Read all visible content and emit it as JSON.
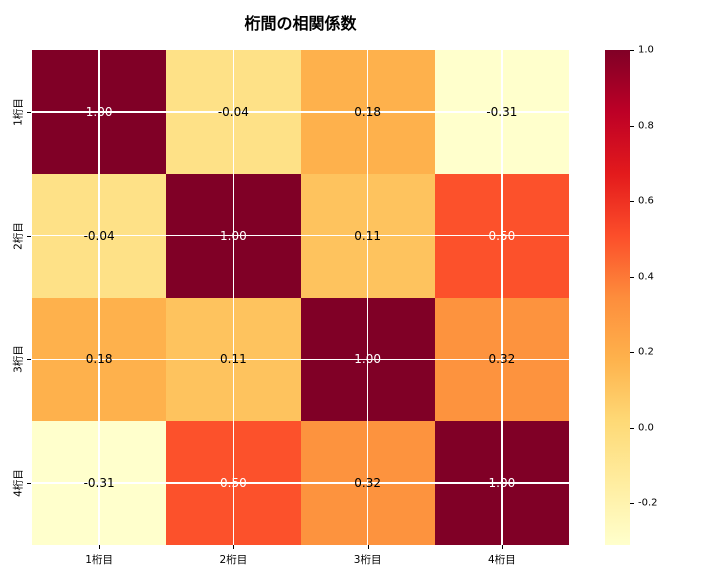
{
  "chart_data": {
    "type": "heatmap",
    "title": "桁間の相関係数",
    "categories": [
      "1桁目",
      "2桁目",
      "3桁目",
      "4桁目"
    ],
    "rows": [
      "1桁目",
      "2桁目",
      "3桁目",
      "4桁目"
    ],
    "matrix": [
      [
        1.0,
        -0.04,
        0.18,
        -0.31
      ],
      [
        -0.04,
        1.0,
        0.11,
        0.5
      ],
      [
        0.18,
        0.11,
        1.0,
        0.32
      ],
      [
        -0.31,
        0.5,
        0.32,
        1.0
      ]
    ],
    "cell_labels": [
      [
        "1.00",
        "-0.04",
        "0.18",
        "-0.31"
      ],
      [
        "-0.04",
        "1.00",
        "0.11",
        "0.50"
      ],
      [
        "0.18",
        "0.11",
        "1.00",
        "0.32"
      ],
      [
        "-0.31",
        "0.50",
        "0.32",
        "1.00"
      ]
    ],
    "cell_colors": [
      [
        "#800026",
        "#FEE187",
        "#FEB14C",
        "#FFFFCC"
      ],
      [
        "#FEE187",
        "#800026",
        "#FEC35E",
        "#FC512B"
      ],
      [
        "#FEB14C",
        "#FEC35E",
        "#800026",
        "#FD933E"
      ],
      [
        "#FFFFCC",
        "#FC512B",
        "#FD933E",
        "#800026"
      ]
    ],
    "cell_text_colors": [
      [
        "#ffffff",
        "#000000",
        "#000000",
        "#000000"
      ],
      [
        "#000000",
        "#ffffff",
        "#000000",
        "#ffffff"
      ],
      [
        "#000000",
        "#000000",
        "#ffffff",
        "#000000"
      ],
      [
        "#000000",
        "#ffffff",
        "#000000",
        "#ffffff"
      ]
    ],
    "colormap": "YlOrRd",
    "vmin": -0.31,
    "vmax": 1.0,
    "grid": true,
    "grid_color": "#ffffff",
    "colorbar": {
      "tick_labels": [
        "1.0",
        "0.8",
        "0.6",
        "0.4",
        "0.2",
        "0.0",
        "-0.2"
      ],
      "tick_values": [
        1.0,
        0.8,
        0.6,
        0.4,
        0.2,
        0.0,
        -0.2
      ],
      "gradient_stops": [
        "#ffffcc",
        "#ffeda0",
        "#fed976",
        "#feb24c",
        "#fd8d3c",
        "#fc4e2a",
        "#e31a1c",
        "#bd0026",
        "#800026"
      ]
    }
  }
}
